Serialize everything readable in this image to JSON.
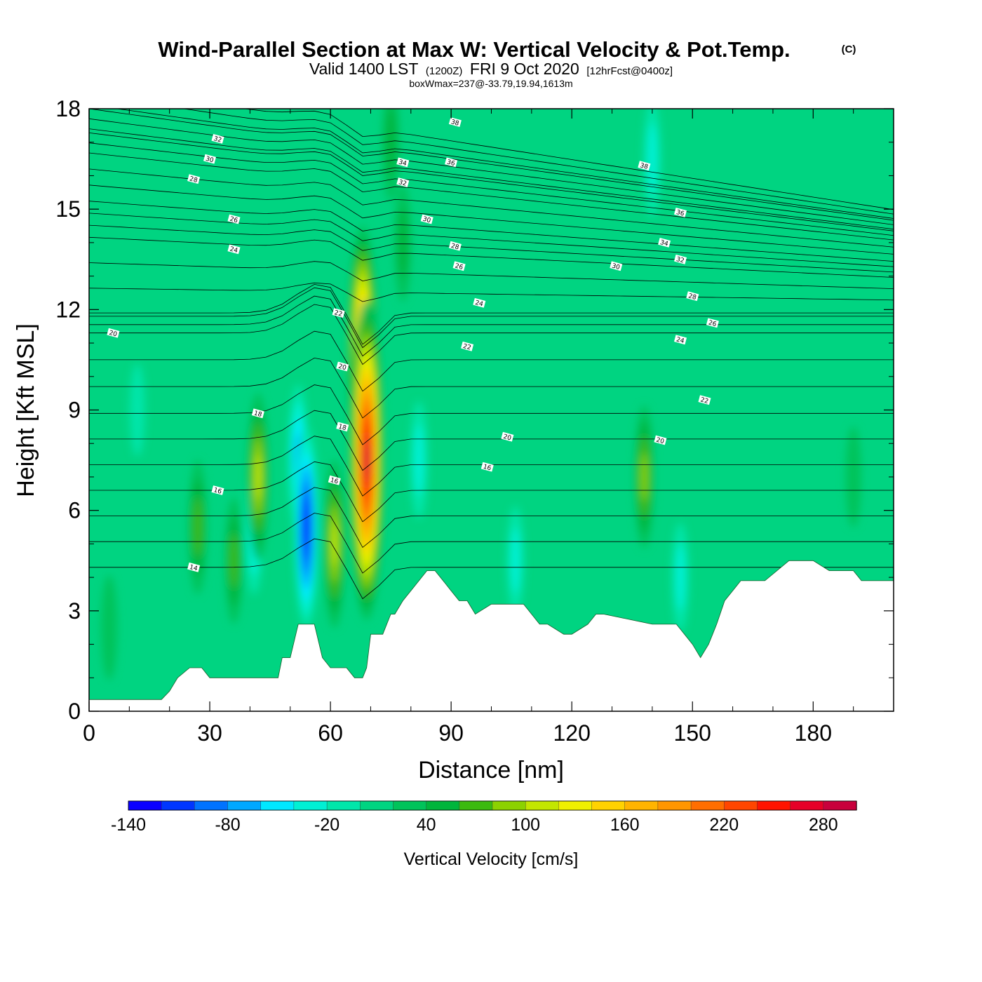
{
  "header": {
    "title": "Wind-Parallel Section at Max W: Vertical Velocity & Pot.Temp.",
    "copyright_mark": "(C)",
    "valid_prefix": "Valid 1400 LST",
    "valid_utc": "(1200Z)",
    "valid_date": "FRI 9 Oct 2020",
    "forecast_info": "[12hrFcst@0400z]",
    "box_info": "boxWmax=237@-33.79,19.94,1613m"
  },
  "chart_data": {
    "type": "heatmap",
    "xlabel": "Distance [nm]",
    "ylabel": "Height [Kft MSL]",
    "xlim": [
      0,
      200
    ],
    "ylim": [
      0,
      18
    ],
    "x_ticks": [
      0,
      30,
      60,
      90,
      120,
      150,
      180
    ],
    "y_ticks": [
      0,
      3,
      6,
      9,
      12,
      15,
      18
    ],
    "terrain_profile": {
      "x": [
        0,
        10,
        18,
        20,
        22,
        25,
        28,
        30,
        40,
        47,
        48,
        50,
        52,
        55,
        56,
        58,
        60,
        64,
        66,
        68,
        69,
        70,
        71,
        73,
        75,
        76,
        78,
        80,
        84,
        86,
        88,
        90,
        92,
        94,
        96,
        100,
        108,
        112,
        114,
        118,
        120,
        124,
        126,
        128,
        140,
        146,
        148,
        150,
        152,
        154,
        156,
        158,
        160,
        162,
        168,
        174,
        180,
        184,
        190,
        192,
        200
      ],
      "height_kft": [
        0.35,
        0.35,
        0.35,
        0.6,
        1.0,
        1.3,
        1.3,
        1.0,
        1.0,
        1.0,
        1.6,
        1.6,
        2.6,
        2.6,
        2.6,
        1.6,
        1.3,
        1.3,
        1.0,
        1.0,
        1.3,
        2.3,
        2.3,
        2.3,
        2.9,
        2.9,
        3.3,
        3.6,
        4.2,
        4.2,
        3.9,
        3.6,
        3.3,
        3.3,
        2.9,
        3.2,
        3.2,
        2.6,
        2.6,
        2.3,
        2.3,
        2.6,
        2.9,
        2.9,
        2.6,
        2.6,
        2.3,
        2.0,
        1.6,
        2.0,
        2.6,
        3.3,
        3.6,
        3.9,
        3.9,
        4.5,
        4.5,
        4.2,
        4.2,
        3.9,
        3.9
      ]
    },
    "w_features": [
      {
        "x": 69,
        "y_kft": 7.5,
        "w_cms": 280
      },
      {
        "x": 68,
        "y_kft": 10.5,
        "w_cms": 220
      },
      {
        "x": 42,
        "y_kft": 7.0,
        "w_cms": 100
      },
      {
        "x": 61,
        "y_kft": 5.0,
        "w_cms": 100
      },
      {
        "x": 27,
        "y_kft": 5.5,
        "w_cms": 60
      },
      {
        "x": 36,
        "y_kft": 4.5,
        "w_cms": 50
      },
      {
        "x": 138,
        "y_kft": 7.0,
        "w_cms": 70
      },
      {
        "x": 78,
        "y_kft": 14.0,
        "w_cms": 40
      },
      {
        "x": 75,
        "y_kft": 17.0,
        "w_cms": 40
      },
      {
        "x": 5,
        "y_kft": 2.5,
        "w_cms": 25
      },
      {
        "x": 54,
        "y_kft": 5.5,
        "w_cms": -140
      },
      {
        "x": 52,
        "y_kft": 7.5,
        "w_cms": -80
      },
      {
        "x": 41,
        "y_kft": 5.5,
        "w_cms": -60
      },
      {
        "x": 82,
        "y_kft": 7.5,
        "w_cms": -40
      },
      {
        "x": 140,
        "y_kft": 16.5,
        "w_cms": -40
      },
      {
        "x": 147,
        "y_kft": 4.0,
        "w_cms": -30
      },
      {
        "x": 106,
        "y_kft": 4.5,
        "w_cms": -30
      },
      {
        "x": 12,
        "y_kft": 9.0,
        "w_cms": -10
      },
      {
        "x": 190,
        "y_kft": 7.0,
        "w_cms": 20
      }
    ],
    "theta_contours": {
      "label_series": [
        {
          "value": 14,
          "label": "14",
          "x": 26,
          "y": 4.3
        },
        {
          "value": 16,
          "label": "16",
          "x": 32,
          "y": 6.6
        },
        {
          "value": 18,
          "label": "18",
          "x": 42,
          "y": 8.9
        },
        {
          "value": 20,
          "label": "20",
          "x": 6,
          "y": 11.3
        },
        {
          "value": 22,
          "label": "22",
          "x": 62,
          "y": 11.9
        },
        {
          "value": 24,
          "label": "24",
          "x": 36,
          "y": 13.8
        },
        {
          "value": 26,
          "label": "26",
          "x": 36,
          "y": 14.7
        },
        {
          "value": 28,
          "label": "28",
          "x": 26,
          "y": 15.9
        },
        {
          "value": 30,
          "label": "30",
          "x": 30,
          "y": 16.5
        },
        {
          "value": 32,
          "label": "32",
          "x": 32,
          "y": 17.1
        }
      ],
      "annotations": [
        {
          "label": "16",
          "x": 61,
          "y": 6.9
        },
        {
          "label": "18",
          "x": 63,
          "y": 8.5
        },
        {
          "label": "20",
          "x": 63,
          "y": 10.3
        },
        {
          "label": "16",
          "x": 99,
          "y": 7.3
        },
        {
          "label": "20",
          "x": 104,
          "y": 8.2
        },
        {
          "label": "22",
          "x": 94,
          "y": 10.9
        },
        {
          "label": "24",
          "x": 97,
          "y": 12.2
        },
        {
          "label": "26",
          "x": 92,
          "y": 13.3
        },
        {
          "label": "28",
          "x": 91,
          "y": 13.9
        },
        {
          "label": "30",
          "x": 84,
          "y": 14.7
        },
        {
          "label": "32",
          "x": 78,
          "y": 15.8
        },
        {
          "label": "34",
          "x": 78,
          "y": 16.4
        },
        {
          "label": "36",
          "x": 90,
          "y": 16.4
        },
        {
          "label": "38",
          "x": 91,
          "y": 17.6
        },
        {
          "label": "20",
          "x": 142,
          "y": 8.1
        },
        {
          "label": "22",
          "x": 153,
          "y": 9.3
        },
        {
          "label": "24",
          "x": 147,
          "y": 11.1
        },
        {
          "label": "26",
          "x": 155,
          "y": 11.6
        },
        {
          "label": "28",
          "x": 150,
          "y": 12.4
        },
        {
          "label": "30",
          "x": 131,
          "y": 13.3
        },
        {
          "label": "32",
          "x": 147,
          "y": 13.5
        },
        {
          "label": "34",
          "x": 143,
          "y": 14.0
        },
        {
          "label": "36",
          "x": 147,
          "y": 14.9
        },
        {
          "label": "38",
          "x": 138,
          "y": 16.3
        }
      ]
    }
  },
  "colorbar": {
    "title": "Vertical Velocity [cm/s]",
    "min": -140,
    "step": 20,
    "colors": [
      "#0a00ff",
      "#0036ff",
      "#0073ff",
      "#00a8ff",
      "#00e8ff",
      "#00f0d4",
      "#00e6aa",
      "#00d481",
      "#00c35a",
      "#00b53c",
      "#3cba10",
      "#8cd200",
      "#c3e600",
      "#f0f000",
      "#ffd200",
      "#ffb400",
      "#ff9600",
      "#ff6e00",
      "#ff4600",
      "#ff1400",
      "#e60028",
      "#c8003c"
    ],
    "tick_labels": [
      "-140",
      "-80",
      "-20",
      "40",
      "100",
      "160",
      "220",
      "280"
    ],
    "tick_values": [
      -140,
      -80,
      -20,
      40,
      100,
      160,
      220,
      280
    ]
  }
}
